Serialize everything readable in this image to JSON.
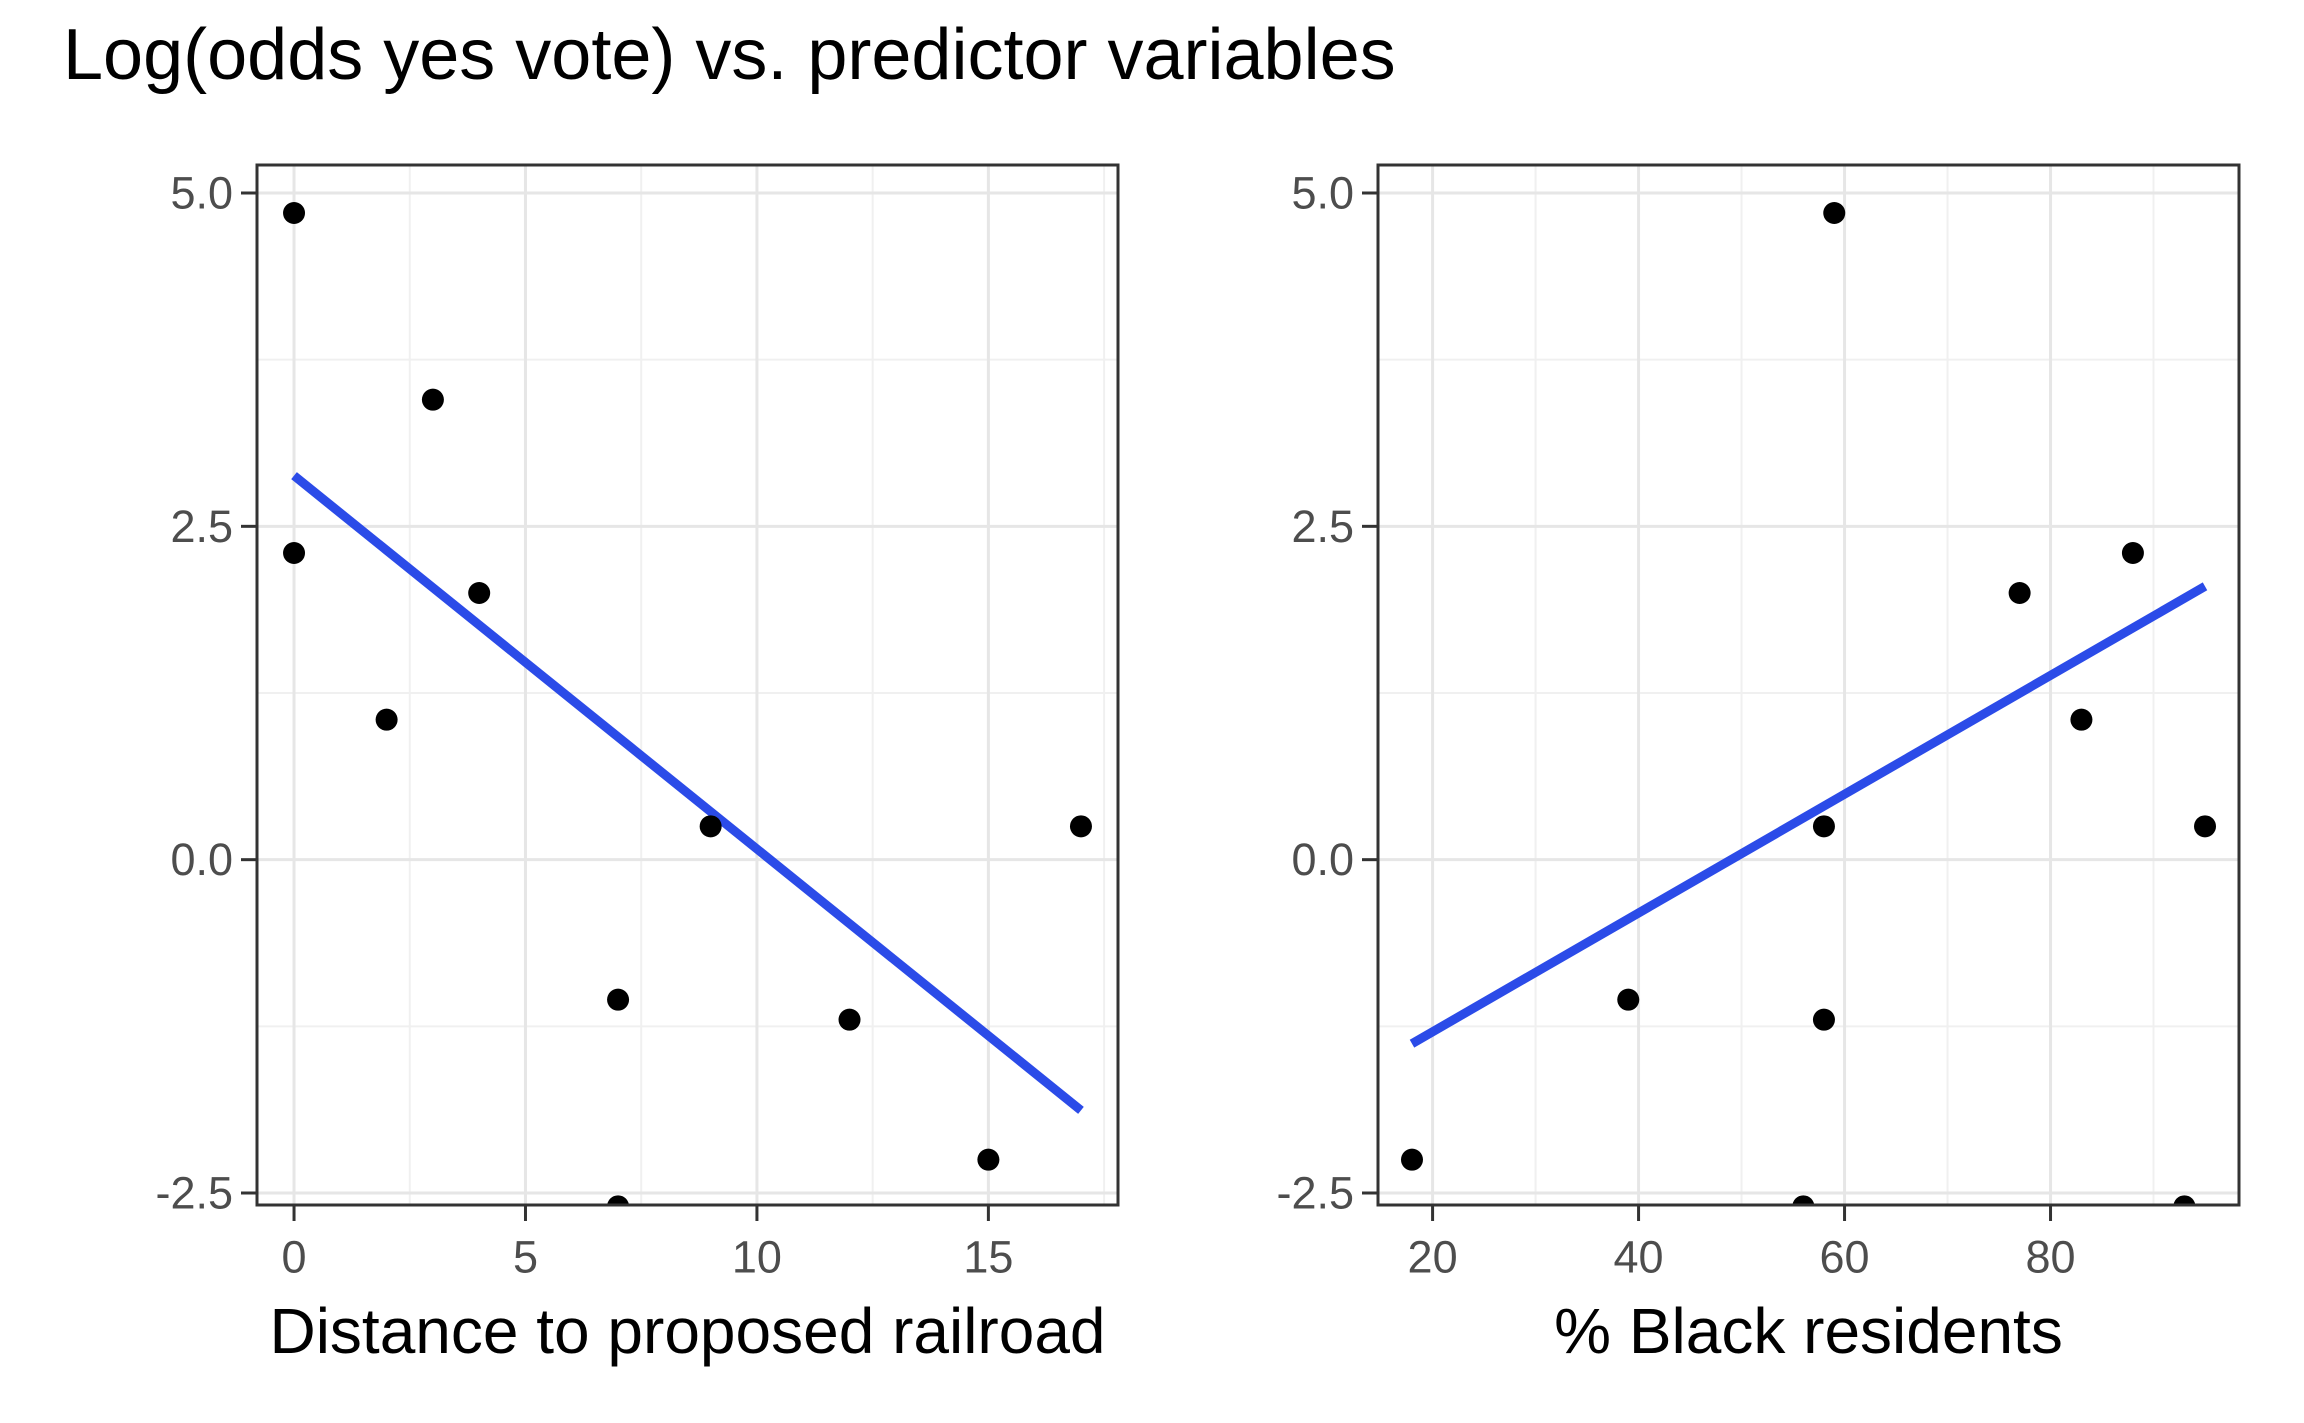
{
  "title": "Log(odds yes vote) vs. predictor variables",
  "colors": {
    "background": "#FFFFFF",
    "panel_background": "#FFFFFF",
    "panel_border": "#333333",
    "grid_major": "#E6E6E6",
    "grid_minor": "#F0F0F0",
    "point": "#000000",
    "smooth_line": "#2B4BE8",
    "axis_tick": "#333333",
    "tick_label": "#4D4D4D",
    "axis_title": "#000000"
  },
  "chart_data": [
    {
      "type": "scatter",
      "panel": "left",
      "title": "",
      "xlabel": "Distance to proposed railroad",
      "ylabel": "",
      "xlim": [
        -0.8,
        17.8
      ],
      "ylim": [
        -2.59,
        5.21
      ],
      "x_ticks": [
        0,
        5,
        10,
        15
      ],
      "x_tick_labels": [
        "0",
        "5",
        "10",
        "15"
      ],
      "x_minor": [
        2.5,
        7.5,
        12.5,
        17.5
      ],
      "y_ticks": [
        5.0,
        2.5,
        0.0,
        -2.5
      ],
      "y_tick_labels": [
        "5.0",
        "2.5",
        "0.0",
        "-2.5"
      ],
      "y_minor": [
        3.75,
        1.25,
        -1.25
      ],
      "grid": true,
      "legend": "none",
      "points": [
        [
          0,
          4.85
        ],
        [
          3,
          3.45
        ],
        [
          0,
          2.3
        ],
        [
          4,
          2.0
        ],
        [
          2,
          1.05
        ],
        [
          9,
          0.25
        ],
        [
          17,
          0.25
        ],
        [
          7,
          -1.05
        ],
        [
          12,
          -1.2
        ],
        [
          15,
          -2.25
        ],
        [
          7,
          -2.6
        ]
      ],
      "trend_line": {
        "x1": 0,
        "y1": 2.88,
        "x2": 17,
        "y2": -1.88
      }
    },
    {
      "type": "scatter",
      "panel": "right",
      "title": "",
      "xlabel": "% Black residents",
      "ylabel": "",
      "xlim": [
        14.7,
        98.3
      ],
      "ylim": [
        -2.59,
        5.21
      ],
      "x_ticks": [
        20,
        40,
        60,
        80
      ],
      "x_tick_labels": [
        "20",
        "40",
        "60",
        "80"
      ],
      "x_minor": [
        30,
        50,
        70,
        90
      ],
      "y_ticks": [
        5.0,
        2.5,
        0.0,
        -2.5
      ],
      "y_tick_labels": [
        "5.0",
        "2.5",
        "0.0",
        "-2.5"
      ],
      "y_minor": [
        3.75,
        1.25,
        -1.25
      ],
      "grid": true,
      "legend": "none",
      "points": [
        [
          59,
          4.85
        ],
        [
          88,
          2.3
        ],
        [
          77,
          2.0
        ],
        [
          83,
          1.05
        ],
        [
          95,
          0.25
        ],
        [
          58,
          0.25
        ],
        [
          39,
          -1.05
        ],
        [
          58,
          -1.2
        ],
        [
          18,
          -2.25
        ],
        [
          56,
          -2.6
        ],
        [
          93,
          -2.6
        ]
      ],
      "trend_line": {
        "x1": 18,
        "y1": -1.38,
        "x2": 95,
        "y2": 2.05
      }
    }
  ]
}
